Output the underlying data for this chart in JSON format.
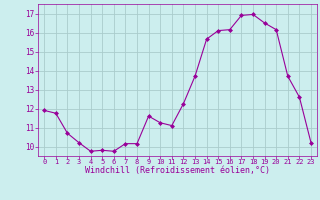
{
  "x": [
    0,
    1,
    2,
    3,
    4,
    5,
    6,
    7,
    8,
    9,
    10,
    11,
    12,
    13,
    14,
    15,
    16,
    17,
    18,
    19,
    20,
    21,
    22,
    23
  ],
  "y": [
    11.9,
    11.75,
    10.7,
    10.2,
    9.75,
    9.8,
    9.75,
    10.15,
    10.15,
    11.6,
    11.25,
    11.1,
    12.25,
    13.7,
    15.65,
    16.1,
    16.15,
    16.9,
    16.95,
    16.5,
    16.15,
    13.7,
    12.6,
    10.2
  ],
  "line_color": "#990099",
  "marker": "D",
  "marker_size": 2,
  "bg_color": "#cceeee",
  "grid_color": "#aacccc",
  "xlabel": "Windchill (Refroidissement éolien,°C)",
  "xlabel_color": "#990099",
  "tick_color": "#990099",
  "ylim": [
    9.5,
    17.5
  ],
  "xlim": [
    -0.5,
    23.5
  ],
  "yticks": [
    10,
    11,
    12,
    13,
    14,
    15,
    16,
    17
  ],
  "xticks": [
    0,
    1,
    2,
    3,
    4,
    5,
    6,
    7,
    8,
    9,
    10,
    11,
    12,
    13,
    14,
    15,
    16,
    17,
    18,
    19,
    20,
    21,
    22,
    23
  ],
  "xtick_labels": [
    "0",
    "1",
    "2",
    "3",
    "4",
    "5",
    "6",
    "7",
    "8",
    "9",
    "10",
    "11",
    "12",
    "13",
    "14",
    "15",
    "16",
    "17",
    "18",
    "19",
    "20",
    "21",
    "22",
    "23"
  ],
  "ytick_labels": [
    "10",
    "11",
    "12",
    "13",
    "14",
    "15",
    "16",
    "17"
  ]
}
